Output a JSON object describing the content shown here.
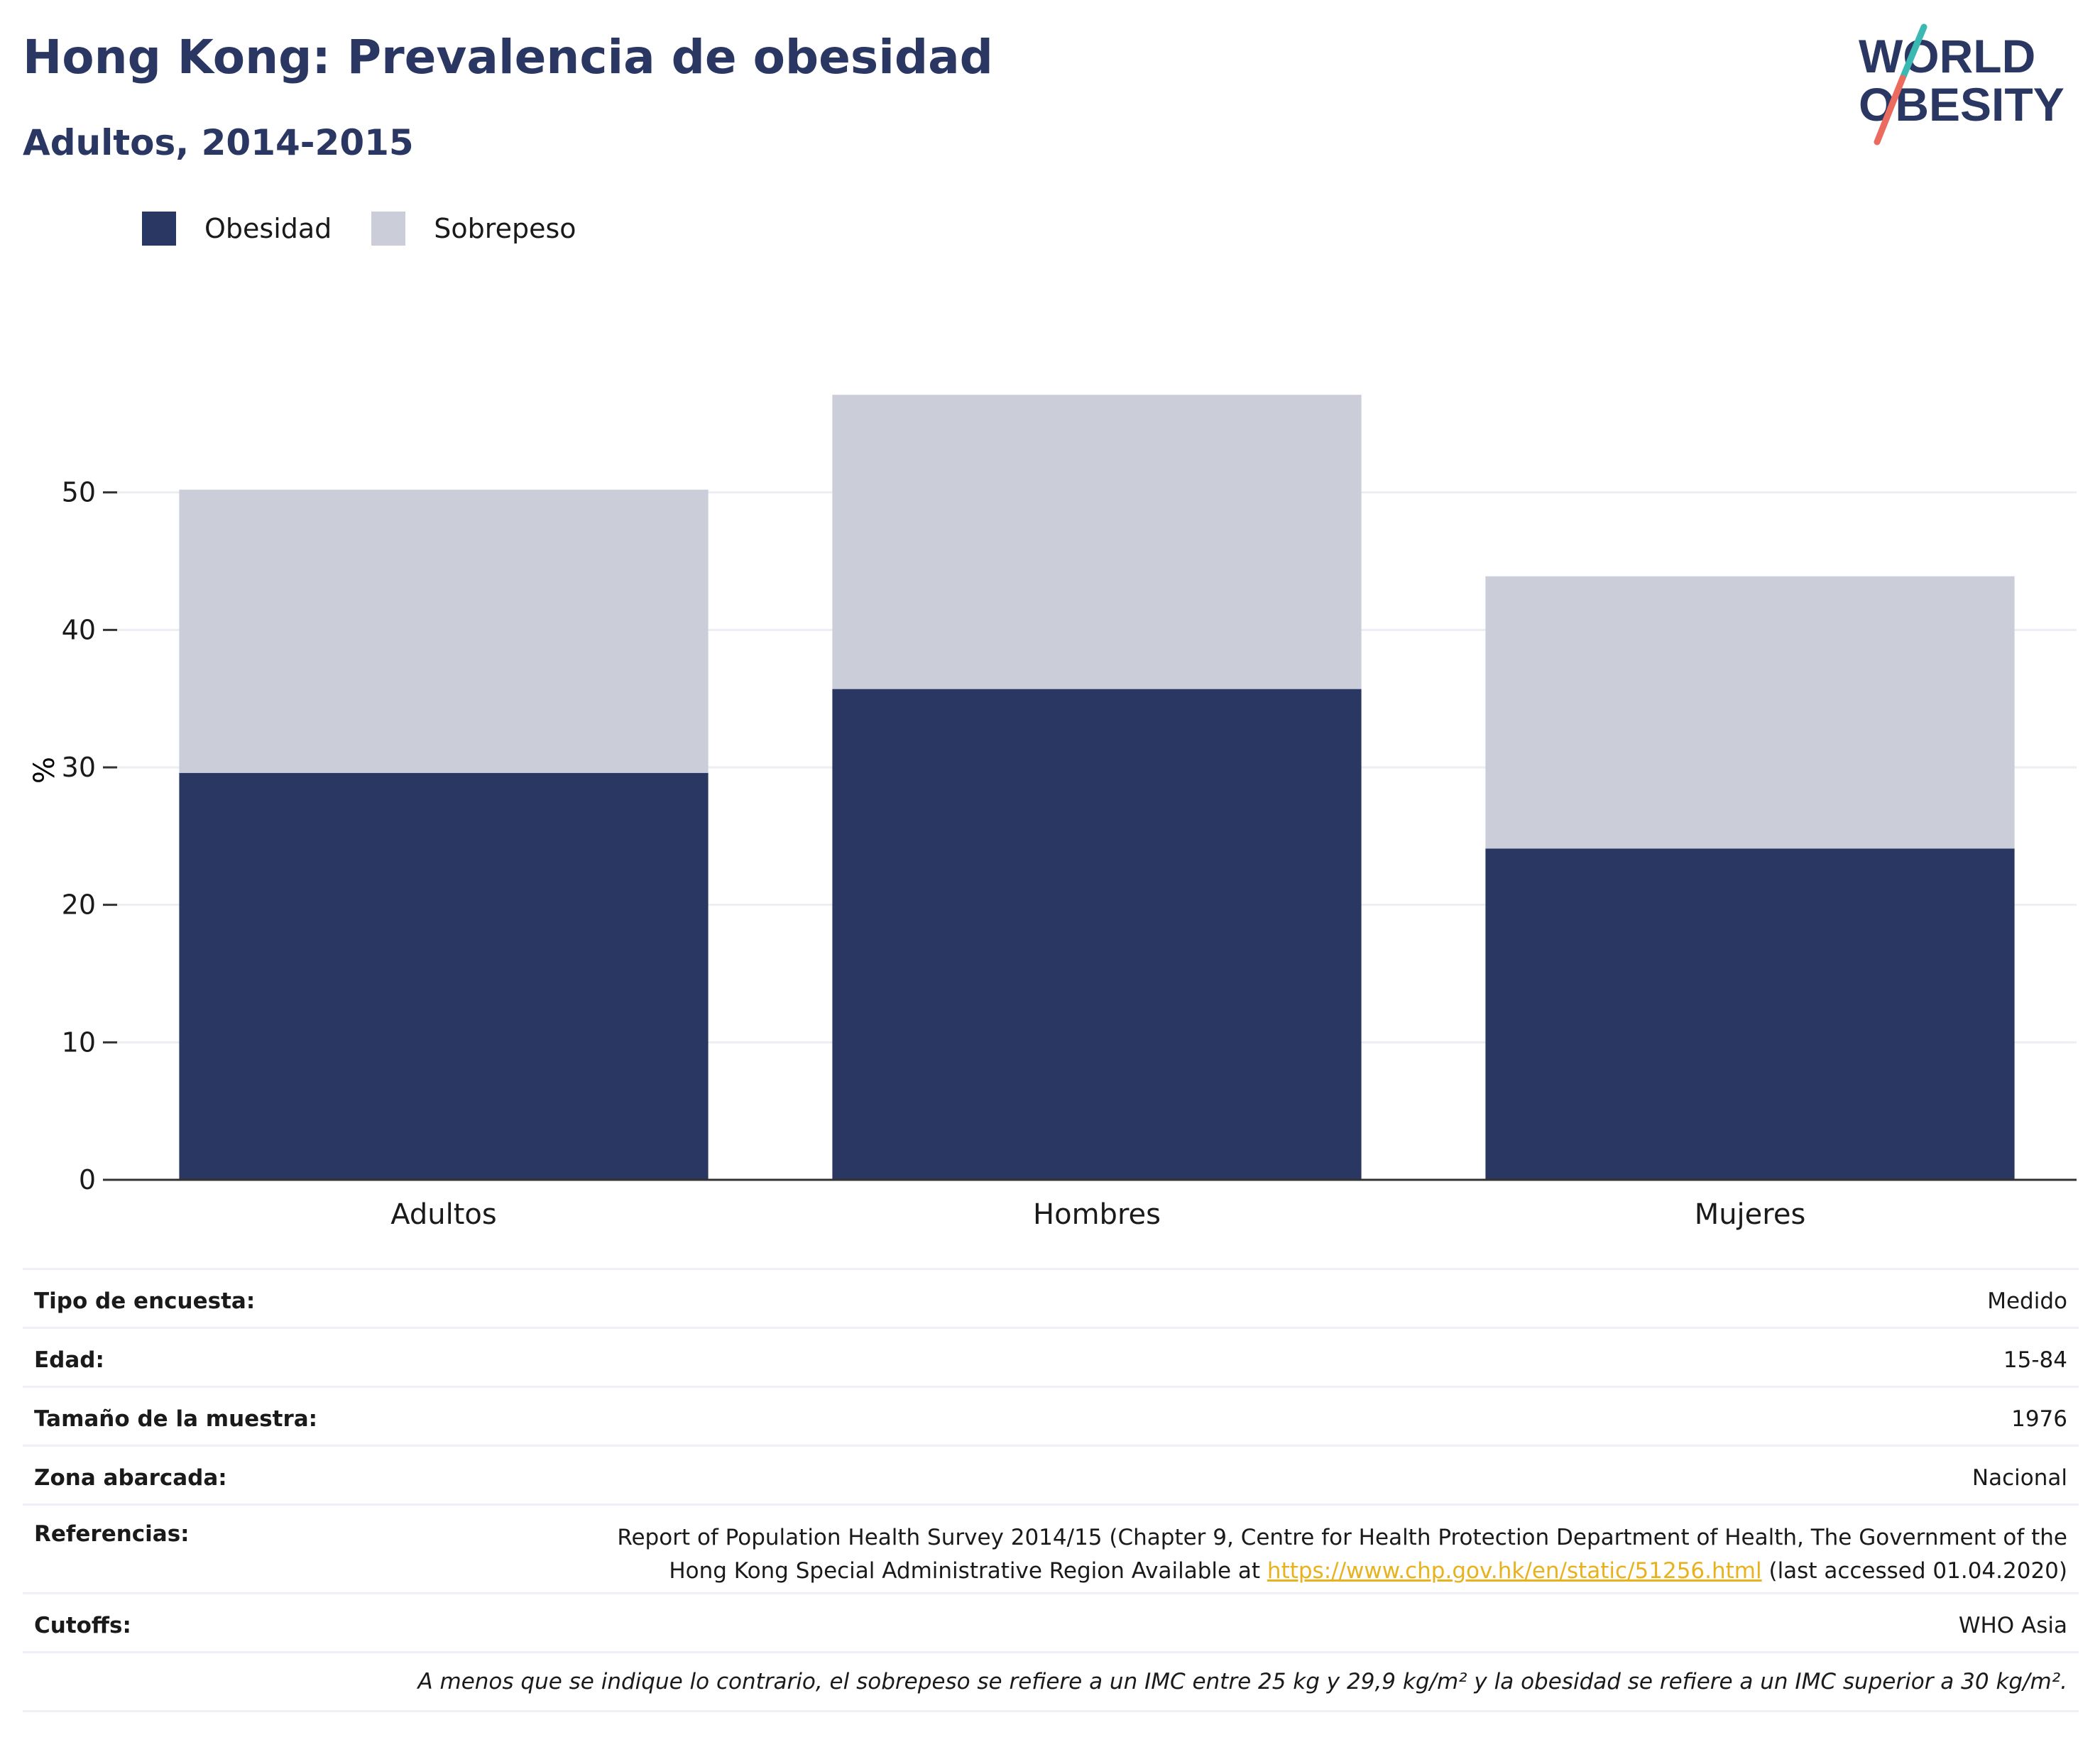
{
  "header": {
    "title": "Hong Kong: Prevalencia de obesidad",
    "subtitle": "Adultos, 2014-2015"
  },
  "logo": {
    "line1": "WORLD",
    "line2": "OBESITY"
  },
  "colors": {
    "obesity": "#2a3763",
    "overweight": "#cbcdd8",
    "title": "#2a3763",
    "link": "#e8b21e",
    "logo_teal": "#3cb8b3",
    "logo_coral": "#ec6b5f"
  },
  "chart_data": {
    "type": "bar",
    "stacked": true,
    "categories": [
      "Adultos",
      "Hombres",
      "Mujeres"
    ],
    "series": [
      {
        "name": "Obesidad",
        "values": [
          29.6,
          35.7,
          24.1
        ],
        "color": "#2a3763"
      },
      {
        "name": "Sobrepeso",
        "values": [
          20.6,
          21.4,
          19.8
        ],
        "color": "#cbcdd8"
      }
    ],
    "ylabel": "%",
    "xlabel": "",
    "ylim": [
      0,
      60
    ],
    "yticks": [
      0,
      10,
      20,
      30,
      40,
      50
    ],
    "grid": true,
    "legend_position": "top-left"
  },
  "info": {
    "survey_type": {
      "label": "Tipo de encuesta:",
      "value": "Medido"
    },
    "age": {
      "label": "Edad:",
      "value": "15-84"
    },
    "sample_size": {
      "label": "Tamaño de la muestra:",
      "value": "1976"
    },
    "area": {
      "label": "Zona abarcada:",
      "value": "Nacional"
    },
    "references": {
      "label": "Referencias:",
      "text_line1": "Report of Population Health Survey 2014/15 (Chapter 9, Centre for Health Protection Department of Health, The Government of the",
      "text_line2_pre": "Hong Kong Special Administrative Region Available at ",
      "link": "https://www.chp.gov.hk/en/static/51256.html",
      "text_line2_post": " (last accessed 01.04.2020)"
    },
    "cutoffs": {
      "label": "Cutoffs:",
      "value": "WHO Asia"
    },
    "note": "A menos que se indique lo contrario, el sobrepeso se refiere a un IMC entre 25 kg y 29,9 kg/m² y la obesidad se refiere a un IMC superior a 30 kg/m²."
  }
}
